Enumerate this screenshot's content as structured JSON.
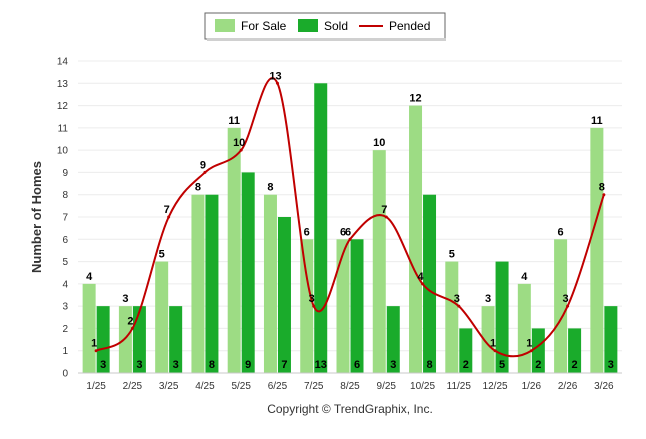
{
  "chart_data": {
    "type": "bar",
    "title": "",
    "xlabel": "",
    "ylabel": "Number of Homes",
    "ylim": [
      0,
      14
    ],
    "yticks": [
      0,
      1,
      2,
      3,
      4,
      5,
      6,
      7,
      8,
      9,
      10,
      11,
      12,
      13,
      14
    ],
    "grid": true,
    "legend_position": "top-center",
    "categories": [
      "1/25",
      "2/25",
      "3/25",
      "4/25",
      "5/25",
      "6/25",
      "7/25",
      "8/25",
      "9/25",
      "10/25",
      "11/25",
      "12/25",
      "1/26",
      "2/26",
      "3/26"
    ],
    "series": [
      {
        "name": "For Sale",
        "type": "bar",
        "color": "#9ddc84",
        "values": [
          4,
          3,
          5,
          8,
          11,
          8,
          6,
          6,
          10,
          12,
          5,
          3,
          4,
          6,
          11
        ]
      },
      {
        "name": "Sold",
        "type": "bar",
        "color": "#1aab2b",
        "values": [
          3,
          3,
          3,
          8,
          9,
          7,
          13,
          6,
          3,
          8,
          2,
          5,
          2,
          2,
          3
        ]
      },
      {
        "name": "Pended",
        "type": "line",
        "color": "#c00000",
        "values": [
          1,
          2,
          7,
          9,
          10,
          13,
          3,
          6,
          7,
          4,
          3,
          1,
          1,
          3,
          8
        ]
      }
    ]
  },
  "copyright": "Copyright © TrendGraphix, Inc."
}
